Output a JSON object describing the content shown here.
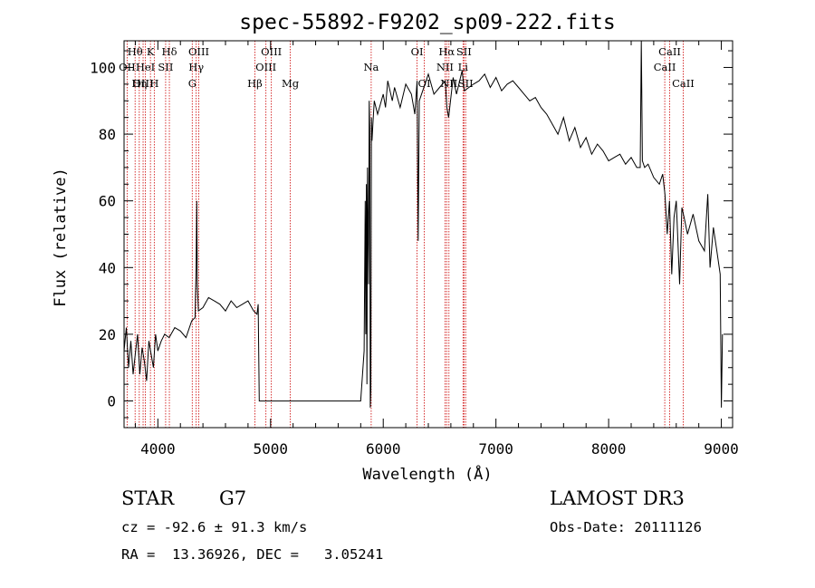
{
  "chart_data": {
    "type": "line",
    "title": "spec-55892-F9202_sp09-222.fits",
    "xlabel": "Wavelength (Å)",
    "ylabel": "Flux (relative)",
    "xlim": [
      3700,
      9100
    ],
    "ylim": [
      -8,
      108
    ],
    "xticks": [
      4000,
      5000,
      6000,
      7000,
      8000,
      9000
    ],
    "yticks": [
      0,
      20,
      40,
      60,
      80,
      100
    ],
    "grid": false,
    "series": [
      {
        "x": [
          3700,
          3720,
          3740,
          3760,
          3780,
          3800,
          3820,
          3840,
          3860,
          3880,
          3900,
          3920,
          3940,
          3960,
          3980,
          4000,
          4030,
          4060,
          4100,
          4150,
          4200,
          4250,
          4300,
          4330,
          4340,
          4345,
          4350,
          4360,
          4400,
          4450,
          4500,
          4550,
          4600,
          4650,
          4700,
          4750,
          4800,
          4850,
          4880,
          4890,
          4900,
          5000,
          5200,
          5500,
          5800,
          5830,
          5840,
          5845,
          5850,
          5855,
          5860,
          5870,
          5875,
          5880,
          5885,
          5890,
          5895,
          5900,
          5910,
          5920,
          5950,
          6000,
          6020,
          6040,
          6080,
          6100,
          6150,
          6200,
          6250,
          6280,
          6300,
          6310,
          6320,
          6350,
          6400,
          6450,
          6500,
          6550,
          6565,
          6580,
          6620,
          6650,
          6700,
          6720,
          6760,
          6800,
          6850,
          6900,
          6950,
          7000,
          7050,
          7100,
          7150,
          7200,
          7250,
          7300,
          7350,
          7400,
          7450,
          7500,
          7550,
          7600,
          7650,
          7700,
          7750,
          7800,
          7850,
          7900,
          7950,
          8000,
          8050,
          8100,
          8150,
          8200,
          8250,
          8280,
          8290,
          8300,
          8320,
          8350,
          8400,
          8450,
          8480,
          8500,
          8520,
          8540,
          8560,
          8580,
          8600,
          8630,
          8650,
          8670,
          8700,
          8750,
          8800,
          8850,
          8880,
          8900,
          8930,
          8960,
          8990,
          9000,
          9010
        ],
        "y": [
          15,
          22,
          10,
          18,
          8,
          14,
          20,
          8,
          16,
          12,
          6,
          18,
          14,
          10,
          20,
          15,
          18,
          20,
          19,
          22,
          21,
          19,
          24,
          25,
          40,
          60,
          35,
          27,
          28,
          31,
          30,
          29,
          27,
          30,
          28,
          29,
          30,
          27,
          26,
          29,
          0,
          0,
          0,
          0,
          0,
          15,
          60,
          20,
          65,
          5,
          70,
          35,
          90,
          82,
          -2,
          3,
          85,
          78,
          84,
          90,
          86,
          92,
          88,
          96,
          90,
          94,
          88,
          95,
          92,
          86,
          96,
          48,
          90,
          93,
          98,
          92,
          94,
          96,
          88,
          85,
          97,
          92,
          99,
          93,
          94,
          95,
          96,
          98,
          94,
          97,
          93,
          95,
          96,
          94,
          92,
          90,
          91,
          88,
          86,
          83,
          80,
          85,
          78,
          82,
          76,
          79,
          74,
          77,
          75,
          72,
          73,
          74,
          71,
          73,
          70,
          70,
          108,
          72,
          70,
          71,
          67,
          65,
          68,
          62,
          50,
          60,
          38,
          55,
          60,
          35,
          58,
          55,
          50,
          56,
          48,
          45,
          62,
          40,
          52,
          45,
          38,
          -2,
          20
        ]
      }
    ],
    "line_marks": [
      {
        "label": "Hθ",
        "x": 3798,
        "row": 0
      },
      {
        "label": "OII",
        "x": 3727,
        "row": 1
      },
      {
        "label": "OIII",
        "x": 3869,
        "row": 2
      },
      {
        "label": "K",
        "x": 3934,
        "row": 0
      },
      {
        "label": "HeI",
        "x": 3889,
        "row": 1
      },
      {
        "label": "Hη",
        "x": 3835,
        "row": 2
      },
      {
        "label": "Hδ",
        "x": 4102,
        "row": 0
      },
      {
        "label": "SII",
        "x": 4069,
        "row": 1
      },
      {
        "label": "H",
        "x": 3968,
        "row": 2
      },
      {
        "label": "OIII",
        "x": 4363,
        "row": 0
      },
      {
        "label": "Hγ",
        "x": 4340,
        "row": 1
      },
      {
        "label": "G",
        "x": 4305,
        "row": 2
      },
      {
        "label": "OIII",
        "x": 5007,
        "row": 0
      },
      {
        "label": "OIII",
        "x": 4959,
        "row": 1
      },
      {
        "label": "Hβ",
        "x": 4861,
        "row": 2
      },
      {
        "label": "Mg",
        "x": 5175,
        "row": 2
      },
      {
        "label": "Na",
        "x": 5893,
        "row": 1
      },
      {
        "label": "OI",
        "x": 6300,
        "row": 0
      },
      {
        "label": "OI",
        "x": 6364,
        "row": 2
      },
      {
        "label": "Hα",
        "x": 6563,
        "row": 0
      },
      {
        "label": "SII",
        "x": 6716,
        "row": 0
      },
      {
        "label": "NII",
        "x": 6548,
        "row": 1
      },
      {
        "label": "Li",
        "x": 6708,
        "row": 1
      },
      {
        "label": "NII",
        "x": 6583,
        "row": 2
      },
      {
        "label": "SII",
        "x": 6731,
        "row": 2
      },
      {
        "label": "CaII",
        "x": 8542,
        "row": 0
      },
      {
        "label": "CaII",
        "x": 8498,
        "row": 1
      },
      {
        "label": "CaII",
        "x": 8662,
        "row": 2
      }
    ],
    "colors": {
      "spectrum": "#000000",
      "line_marks": "#cc0000",
      "axes": "#000000"
    }
  },
  "info": {
    "object_class": "STAR",
    "subclass": "G7",
    "survey": "LAMOST DR3",
    "redshift_text": "cz = -92.6 ± 91.3 km/s",
    "obs_date_text": "Obs-Date: 20111126",
    "coords_text": "RA =  13.36926, DEC =   3.05241"
  }
}
